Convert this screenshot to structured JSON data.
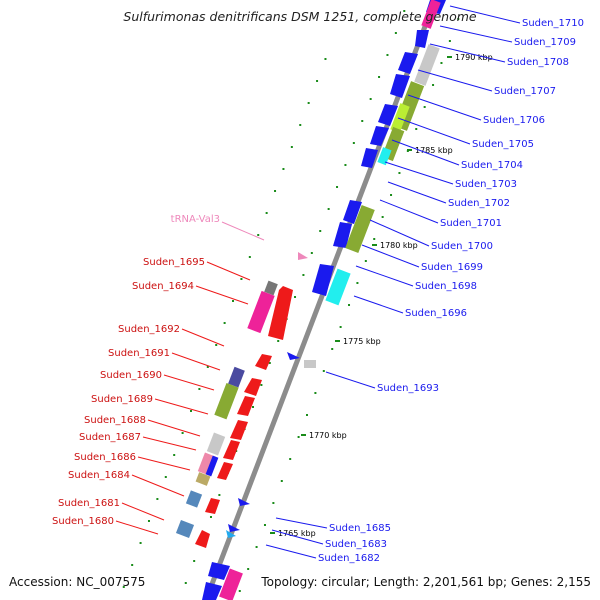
{
  "title": "Sulfurimonas denitrificans DSM 1251, complete genome",
  "accession": "Accession: NC_007575",
  "topology": "Topology: circular; Length: 2,201,561 bp; Genes: 2,155",
  "colors": {
    "backbone": "#999999",
    "tick": "#1a8c1a",
    "blue_gene": "#1a1aee",
    "red_gene": "#ee1a1a",
    "green_box": "#88aa33",
    "cyan_box": "#22eeee",
    "magenta_box": "#ee2299",
    "gray_box": "#aaaaaa",
    "trna": "#ee88bb"
  },
  "scale_labels": [
    "1790 kbp",
    "1785 kbp",
    "1780 kbp",
    "1775 kbp",
    "1770 kbp",
    "1765 kbp"
  ],
  "trna_label": "tRNA-Val3",
  "right_genes": [
    "Suden_1710",
    "Suden_1709",
    "Suden_1708",
    "Suden_1707",
    "Suden_1706",
    "Suden_1705",
    "Suden_1704",
    "Suden_1703",
    "Suden_1702",
    "Suden_1701",
    "Suden_1700",
    "Suden_1699",
    "Suden_1698",
    "Suden_1696",
    "Suden_1693",
    "Suden_1685",
    "Suden_1683",
    "Suden_1682"
  ],
  "left_genes": [
    "Suden_1695",
    "Suden_1694",
    "Suden_1692",
    "Suden_1691",
    "Suden_1690",
    "Suden_1689",
    "Suden_1688",
    "Suden_1687",
    "Suden_1686",
    "Suden_1684",
    "Suden_1681",
    "Suden_1680"
  ]
}
